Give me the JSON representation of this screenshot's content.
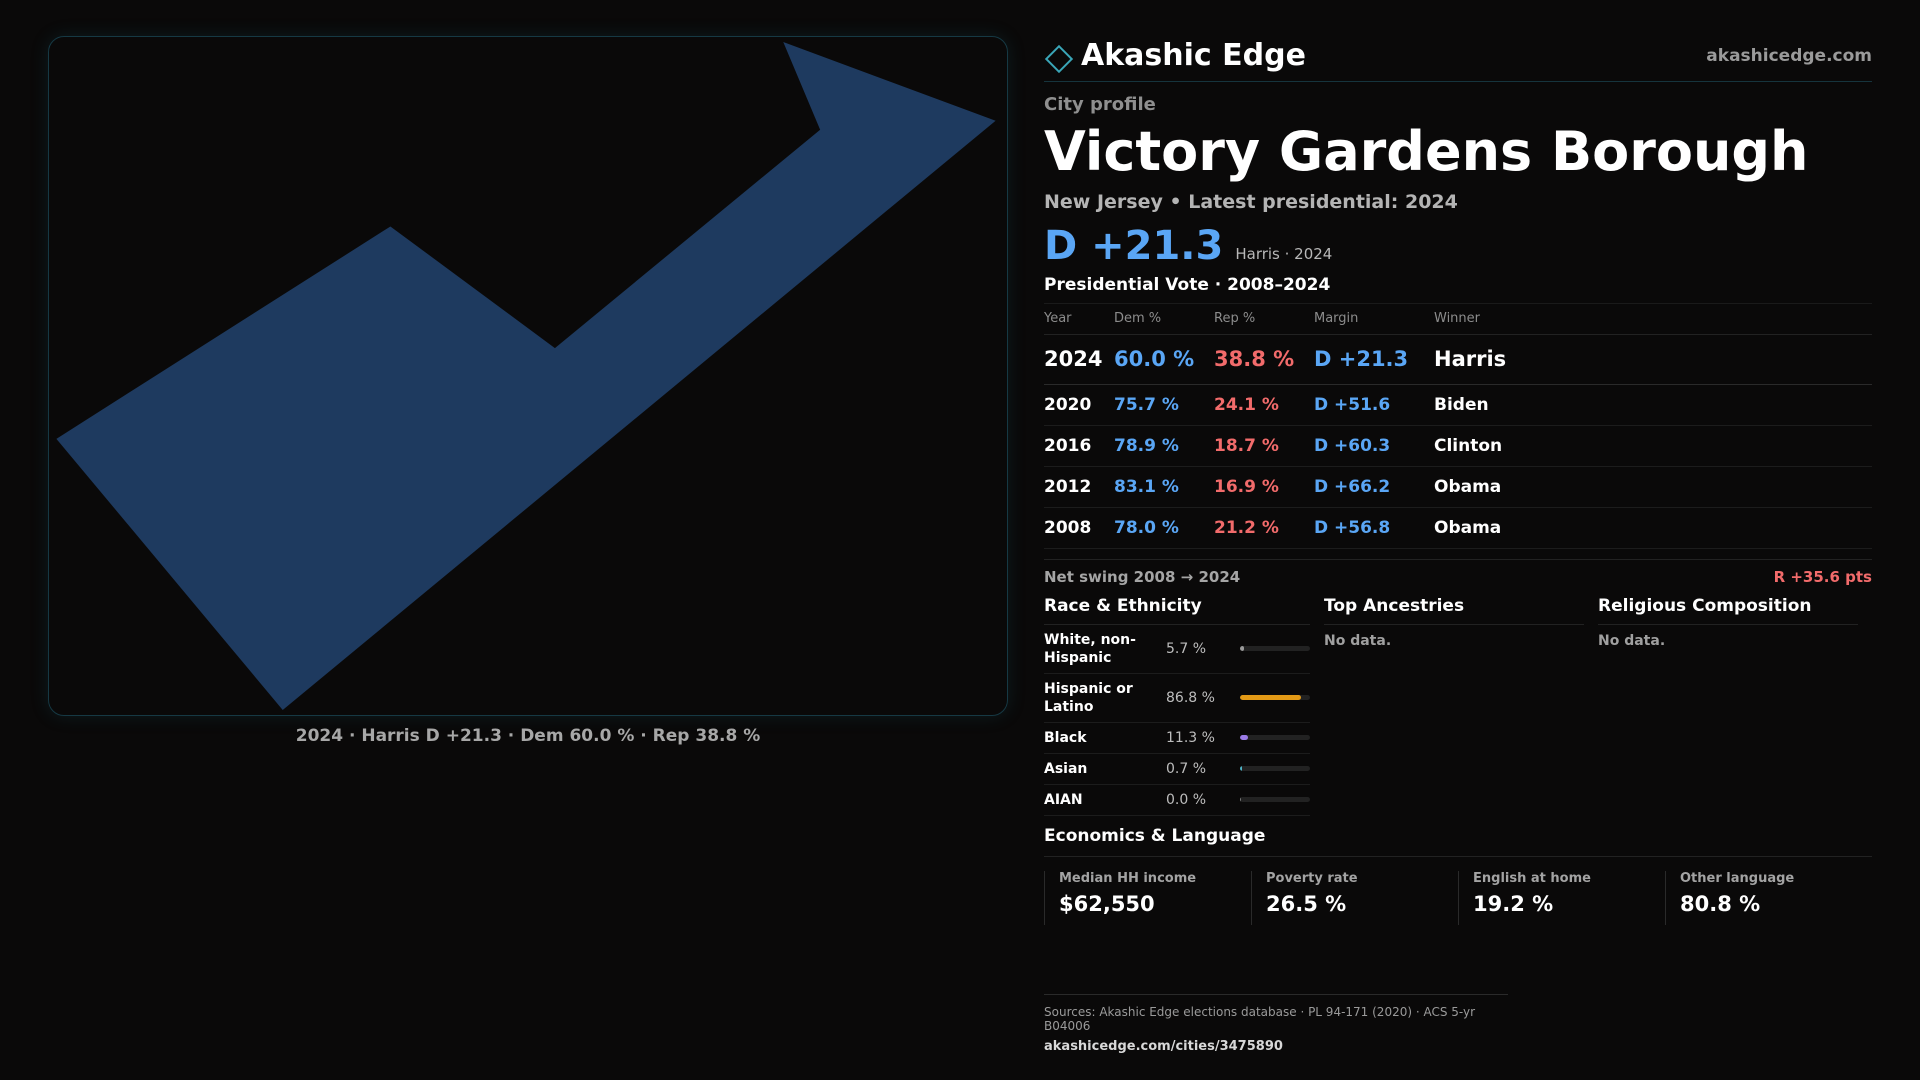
{
  "header": {
    "brand_name": "Akashic Edge",
    "brand_icon": "diamond-icon",
    "site_url": "akashicedge.com"
  },
  "profile": {
    "kicker": "City profile",
    "city_name": "Victory Gardens Borough",
    "subtitle": "New Jersey • Latest presidential: 2024",
    "headline_margin": "D +21.3",
    "headline_note": "Harris · 2024"
  },
  "map": {
    "caption": "2024 · Harris D +21.3 · Dem 60.0 % · Rep 38.8 %",
    "fill_color": "#1e3a5f"
  },
  "presidential": {
    "title": "Presidential Vote · 2008–2024",
    "columns": [
      "Year",
      "Dem %",
      "Rep %",
      "Margin",
      "Winner"
    ],
    "rows": [
      {
        "year": "2024",
        "dem": "60.0 %",
        "rep": "38.8 %",
        "margin": "D +21.3",
        "winner": "Harris"
      },
      {
        "year": "2020",
        "dem": "75.7 %",
        "rep": "24.1 %",
        "margin": "D +51.6",
        "winner": "Biden"
      },
      {
        "year": "2016",
        "dem": "78.9 %",
        "rep": "18.7 %",
        "margin": "D +60.3",
        "winner": "Clinton"
      },
      {
        "year": "2012",
        "dem": "83.1 %",
        "rep": "16.9 %",
        "margin": "D +66.2",
        "winner": "Obama"
      },
      {
        "year": "2008",
        "dem": "78.0 %",
        "rep": "21.2 %",
        "margin": "D +56.8",
        "winner": "Obama"
      }
    ],
    "swing_label": "Net swing 2008 → 2024",
    "swing_value": "R +35.6 pts"
  },
  "race": {
    "title": "Race & Ethnicity",
    "items": [
      {
        "label": "White, non-Hispanic",
        "pct": "5.7 %",
        "value": 5.7,
        "color": "#9a9a9a"
      },
      {
        "label": "Hispanic or Latino",
        "pct": "86.8 %",
        "value": 86.8,
        "color": "#e39a16"
      },
      {
        "label": "Black",
        "pct": "11.3 %",
        "value": 11.3,
        "color": "#9b7be6"
      },
      {
        "label": "Asian",
        "pct": "0.7 %",
        "value": 0.7,
        "color": "#4fb3c6"
      },
      {
        "label": "AIAN",
        "pct": "0.0 %",
        "value": 0.0,
        "color": "#7a7a7a"
      }
    ]
  },
  "ancestry": {
    "title": "Top Ancestries",
    "empty": "No data."
  },
  "religion": {
    "title": "Religious Composition",
    "empty": "No data."
  },
  "economics": {
    "title": "Economics & Language",
    "cards": [
      {
        "label": "Median HH income",
        "value": "$62,550"
      },
      {
        "label": "Poverty rate",
        "value": "26.5 %"
      },
      {
        "label": "English at home",
        "value": "19.2 %"
      },
      {
        "label": "Other language",
        "value": "80.8 %"
      }
    ]
  },
  "footer": {
    "sources": "Sources: Akashic Edge elections database · PL 94-171 (2020) · ACS 5-yr B04006",
    "url": "akashicedge.com/cities/3475890"
  }
}
